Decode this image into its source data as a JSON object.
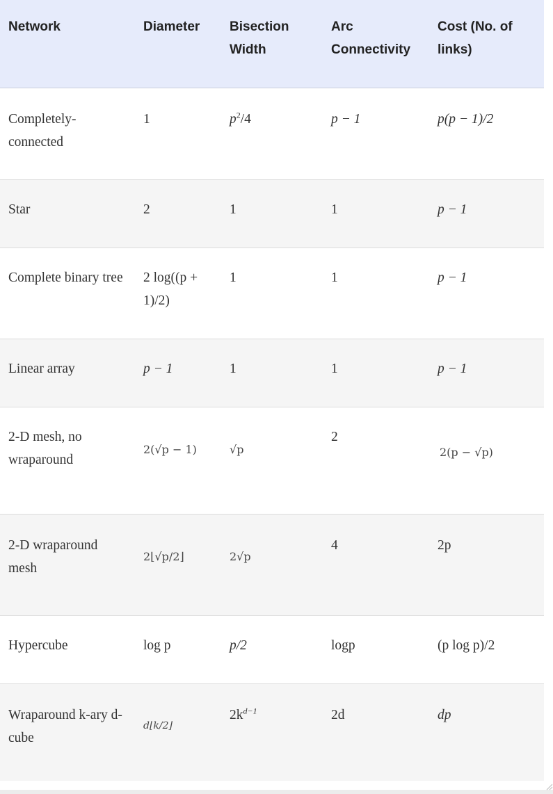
{
  "headers": {
    "network": "Network",
    "diameter": "Diameter",
    "bisection_line1": "Bisection",
    "bisection_line2": "Width",
    "arc_line1": "Arc",
    "arc_line2": "Connectivity",
    "cost_line1": "Cost (No. of",
    "cost_line2": "links)"
  },
  "rows": [
    {
      "network_l1": "Completely-",
      "network_l2": "connected",
      "diameter": "1",
      "bisection_base": "p",
      "bisection_sup": "2",
      "bisection_rest": "/4",
      "arc": "p − 1",
      "cost": "p(p − 1)/2"
    },
    {
      "network": "Star",
      "diameter": "2",
      "bisection": "1",
      "arc": "1",
      "cost": "p − 1"
    },
    {
      "network": "Complete binary tree",
      "diameter_l1": "2 log((p +",
      "diameter_l2": "1)/2)",
      "bisection": "1",
      "arc": "1",
      "cost": "p − 1"
    },
    {
      "network": "Linear array",
      "diameter": "p − 1",
      "bisection": "1",
      "arc": "1",
      "cost": "p − 1"
    },
    {
      "network_l1": "2-D mesh, no",
      "network_l2": "wraparound",
      "diameter": "2(√p − 1)",
      "bisection": "√p",
      "arc": "2",
      "cost": "2(p − √p)"
    },
    {
      "network_l1": "2-D wraparound",
      "network_l2": "mesh",
      "diameter": "2⌊√p/2⌋",
      "bisection": "2√p",
      "arc": "4",
      "cost": "2p"
    },
    {
      "network": "Hypercube",
      "diameter": "log p",
      "bisection": "p/2",
      "arc": "logp",
      "cost": "(p log p)/2"
    },
    {
      "network_l1": "Wraparound k-ary d-",
      "network_l2": "cube",
      "diameter": "d⌊k/2⌋",
      "bisection_base": "2k",
      "bisection_sup": "d−1",
      "arc": "2d",
      "cost": "dp"
    }
  ]
}
